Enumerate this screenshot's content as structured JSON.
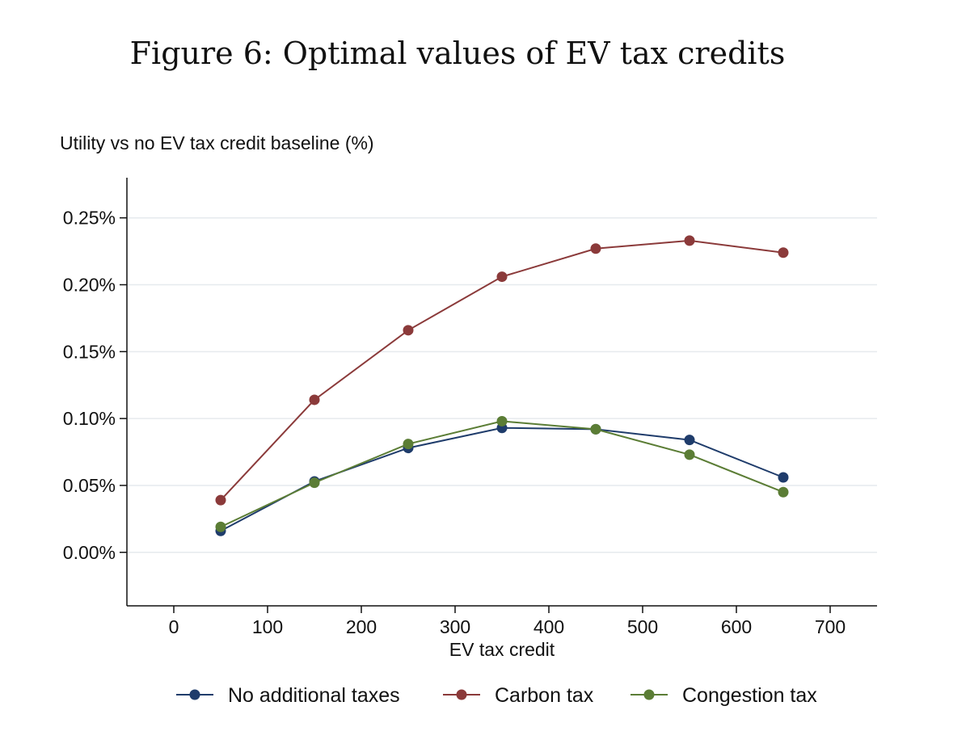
{
  "figure_title": "Figure 6: Optimal values of EV tax credits",
  "chart_data": {
    "type": "line",
    "title": "",
    "ylabel": "Utility vs no EV tax credit baseline (%)",
    "xlabel": "EV tax credit",
    "xlim": [
      -50,
      750
    ],
    "ylim": [
      -0.0004,
      0.0028
    ],
    "xticks": [
      0,
      100,
      200,
      300,
      400,
      500,
      600,
      700
    ],
    "yticks": [
      0,
      0.0005,
      0.001,
      0.0015,
      0.002,
      0.0025
    ],
    "ytick_labels": [
      "0.00%",
      "0.05%",
      "0.10%",
      "0.15%",
      "0.20%",
      "0.25%"
    ],
    "grid": true,
    "legend_position": "bottom",
    "x": [
      50,
      150,
      250,
      350,
      450,
      550,
      650
    ],
    "series": [
      {
        "name": "No additional taxes",
        "color": "#1f3c6b",
        "values": [
          0.00016,
          0.00053,
          0.00078,
          0.00093,
          0.00092,
          0.00084,
          0.00056
        ]
      },
      {
        "name": "Carbon tax",
        "color": "#8b3a3a",
        "values": [
          0.00039,
          0.00114,
          0.00166,
          0.00206,
          0.00227,
          0.00233,
          0.00224
        ]
      },
      {
        "name": "Congestion tax",
        "color": "#5b7d35",
        "values": [
          0.00019,
          0.00052,
          0.00081,
          0.00098,
          0.00092,
          0.00073,
          0.00045
        ]
      }
    ]
  }
}
